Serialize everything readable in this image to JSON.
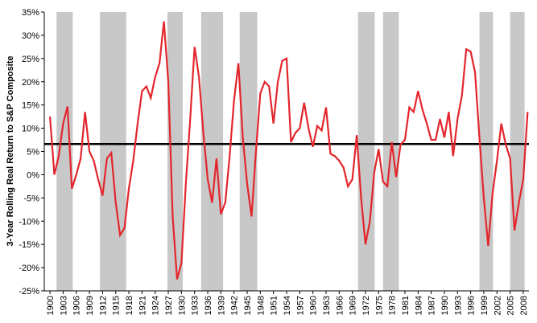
{
  "chart_data": {
    "type": "line",
    "y_label": "3-Year Rolling Real Return to S&P Composite",
    "x": [
      1900,
      1901,
      1902,
      1903,
      1904,
      1905,
      1906,
      1907,
      1908,
      1909,
      1910,
      1911,
      1912,
      1913,
      1914,
      1915,
      1916,
      1917,
      1918,
      1919,
      1920,
      1921,
      1922,
      1923,
      1924,
      1925,
      1926,
      1927,
      1928,
      1929,
      1930,
      1931,
      1932,
      1933,
      1934,
      1935,
      1936,
      1937,
      1938,
      1939,
      1940,
      1941,
      1942,
      1943,
      1944,
      1945,
      1946,
      1947,
      1948,
      1949,
      1950,
      1951,
      1952,
      1953,
      1954,
      1955,
      1956,
      1957,
      1958,
      1959,
      1960,
      1961,
      1962,
      1963,
      1964,
      1965,
      1966,
      1967,
      1968,
      1969,
      1970,
      1971,
      1972,
      1973,
      1974,
      1975,
      1976,
      1977,
      1978,
      1979,
      1980,
      1981,
      1982,
      1983,
      1984,
      1985,
      1986,
      1987,
      1988,
      1989,
      1990,
      1991,
      1992,
      1993,
      1994,
      1995,
      1996,
      1997,
      1998,
      1999,
      2000,
      2001,
      2002,
      2003,
      2004,
      2005,
      2006,
      2007,
      2008,
      2009
    ],
    "series": [
      {
        "color": "#e3262c",
        "values": [
          12.5,
          0,
          4,
          11,
          14.7,
          -3,
          0,
          3.5,
          13.5,
          5,
          3,
          -1,
          -4.5,
          3.5,
          4.7,
          -6,
          -13,
          -11.5,
          -3,
          3,
          11,
          18,
          19,
          16.5,
          21,
          24,
          33,
          20,
          -9,
          -22.5,
          -19,
          -2,
          12,
          27.5,
          21,
          9,
          -1,
          -6,
          3.5,
          -8.5,
          -6,
          4,
          16,
          24,
          8,
          -2,
          -9,
          5,
          17.5,
          20,
          19,
          11,
          20,
          24.5,
          25,
          7,
          9,
          10,
          15.5,
          10,
          6,
          10.5,
          9.5,
          14.5,
          4.5,
          4,
          3,
          1.5,
          -2.5,
          -1,
          8.5,
          -5,
          -15,
          -10,
          0.5,
          5.5,
          -1.5,
          -2.5,
          7,
          -0.5,
          6.5,
          7.5,
          14.5,
          13.5,
          18,
          14,
          11,
          7.5,
          7.5,
          12,
          8,
          13.5,
          4,
          12,
          17,
          27,
          26.5,
          22,
          8,
          -5,
          -15.3,
          -4,
          3,
          11,
          6.5,
          3.5,
          -12,
          -6,
          -1,
          13.5
        ]
      }
    ],
    "average": {
      "value": 6.6,
      "color": "#000000"
    },
    "shaded_ranges": [
      [
        1901.5,
        1905.2
      ],
      [
        1911.4,
        1917.4
      ],
      [
        1926.8,
        1930.3
      ],
      [
        1934.5,
        1939.5
      ],
      [
        1943.3,
        1947.3
      ],
      [
        1970.3,
        1974.1
      ],
      [
        1976,
        1979.6
      ],
      [
        1998,
        2001.1
      ],
      [
        2005,
        2008.3
      ]
    ],
    "shade_color": "#c8c8c8",
    "xlim": [
      1898.7,
      2009.3
    ],
    "xticks": [
      1900,
      1903,
      1906,
      1909,
      1912,
      1915,
      1918,
      1921,
      1924,
      1927,
      1930,
      1933,
      1936,
      1939,
      1942,
      1945,
      1948,
      1951,
      1954,
      1957,
      1960,
      1963,
      1966,
      1969,
      1972,
      1975,
      1978,
      1981,
      1984,
      1987,
      1990,
      1993,
      1996,
      1999,
      2002,
      2005,
      2008
    ],
    "ylim": [
      -25,
      35
    ],
    "yticks": [
      {
        "value": -25,
        "label": "-25%"
      },
      {
        "value": -20,
        "label": "-20%"
      },
      {
        "value": -15,
        "label": "-15%"
      },
      {
        "value": -10,
        "label": "-10%"
      },
      {
        "value": -5,
        "label": "-5%"
      },
      {
        "value": 0,
        "label": "0%"
      },
      {
        "value": 5,
        "label": "5%"
      },
      {
        "value": 10,
        "label": "10%"
      },
      {
        "value": 15,
        "label": "15%"
      },
      {
        "value": 20,
        "label": "20%"
      },
      {
        "value": 25,
        "label": "25%"
      },
      {
        "value": 30,
        "label": "30%"
      },
      {
        "value": 35,
        "label": "35%"
      }
    ],
    "grid": false
  }
}
